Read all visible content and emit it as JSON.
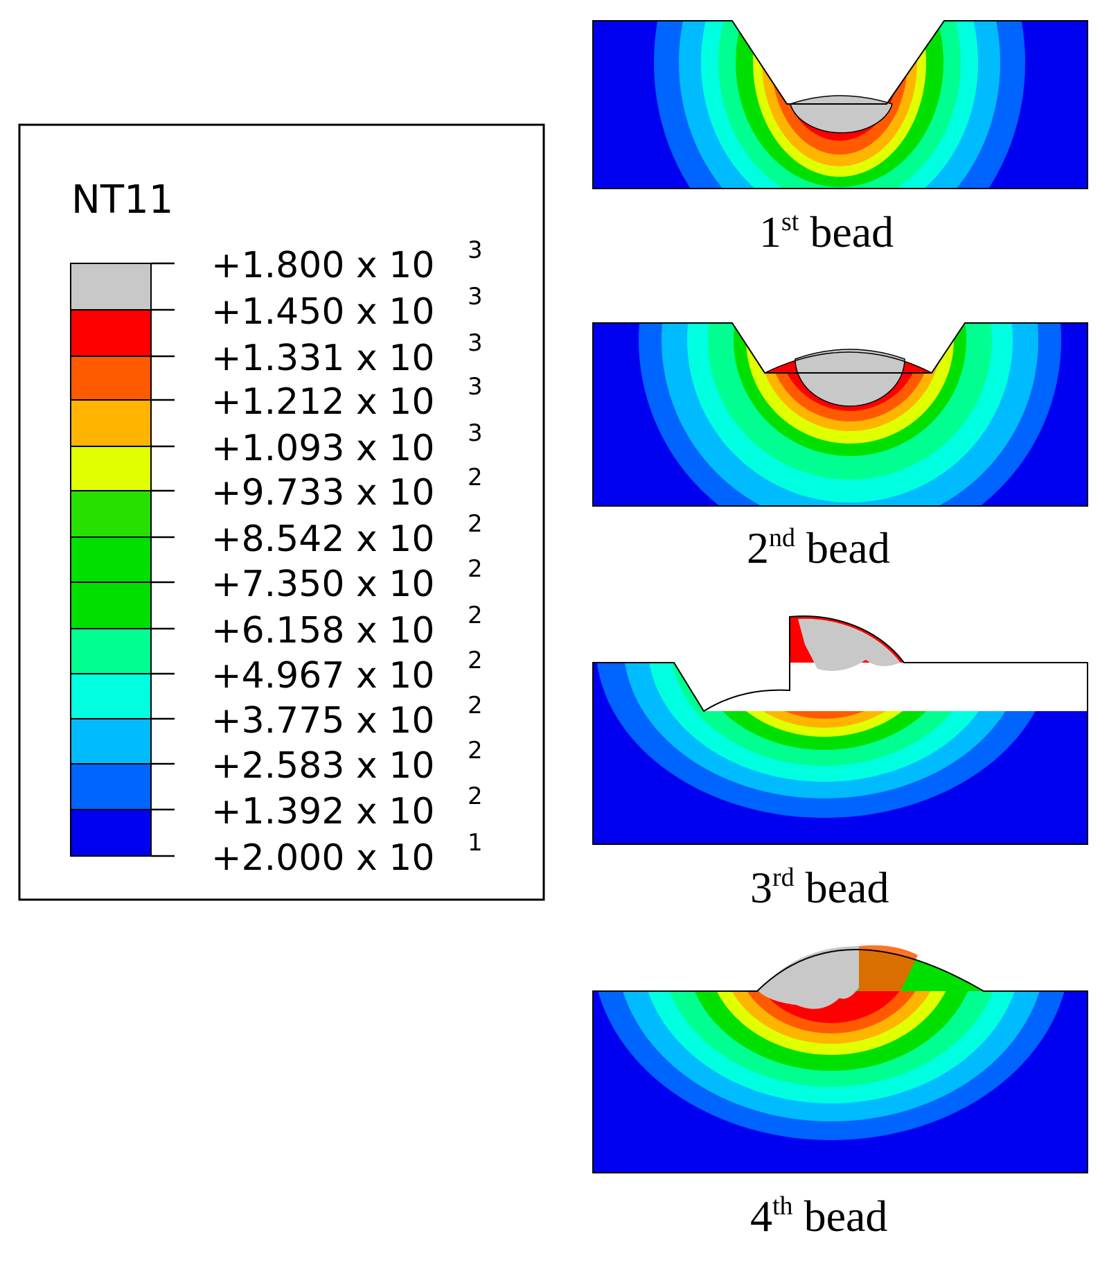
{
  "legend": {
    "title": "NT11",
    "mantissas": [
      "+1.800",
      "+1.450",
      "+1.331",
      "+1.212",
      "+1.093",
      "+9.733",
      "+8.542",
      "+7.350",
      "+6.158",
      "+4.967",
      "+3.775",
      "+2.583",
      "+1.392",
      "+2.000"
    ],
    "exponents": [
      "3",
      "3",
      "3",
      "3",
      "3",
      "2",
      "2",
      "2",
      "2",
      "2",
      "2",
      "2",
      "2",
      "1"
    ],
    "times": "x 10",
    "colors": [
      "#c8c8c8",
      "#ff0000",
      "#ff5a00",
      "#ffb400",
      "#e0ff00",
      "#28e000",
      "#00e000",
      "#00e000",
      "#00ff90",
      "#00ffe0",
      "#00bcff",
      "#0064ff",
      "#0000f0"
    ]
  },
  "panels": [
    {
      "ordinal": "1",
      "suffix": "st",
      "word": "bead"
    },
    {
      "ordinal": "2",
      "suffix": "nd",
      "word": "bead"
    },
    {
      "ordinal": "3",
      "suffix": "rd",
      "word": "bead"
    },
    {
      "ordinal": "4",
      "suffix": "th",
      "word": "bead"
    }
  ]
}
